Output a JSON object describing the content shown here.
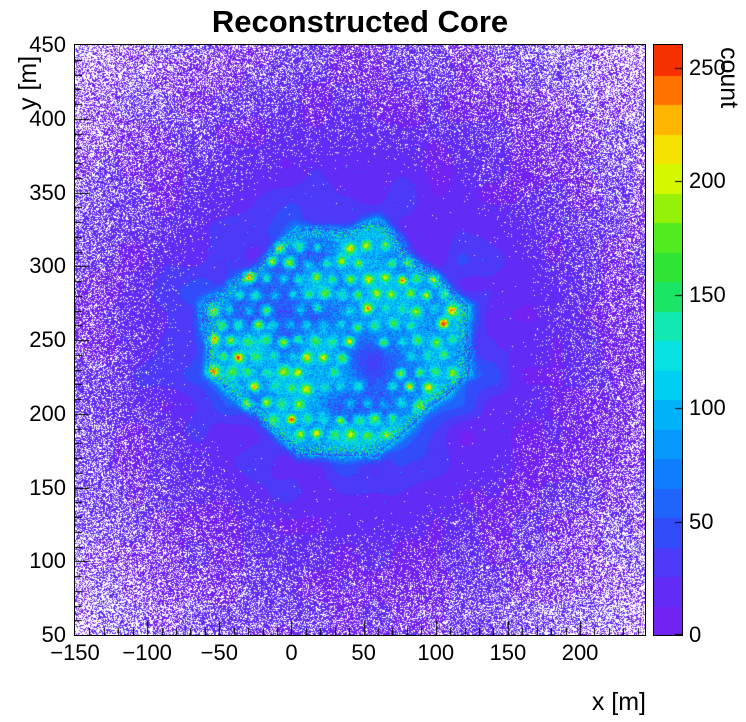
{
  "title": "Reconstructed Core",
  "axes": {
    "x": {
      "label": "x [m]",
      "min": -150,
      "max": 245,
      "major_step": 50,
      "minor_step": 10,
      "tick_values": [
        -150,
        -100,
        -50,
        0,
        50,
        100,
        150,
        200
      ],
      "tick_labels": [
        "−150",
        "−100",
        "−50",
        "0",
        "50",
        "100",
        "150",
        "200"
      ]
    },
    "y": {
      "label": "y [m]",
      "min": 50,
      "max": 450,
      "major_step": 50,
      "minor_step": 10,
      "tick_values": [
        50,
        100,
        150,
        200,
        250,
        300,
        350,
        400,
        450
      ],
      "tick_labels": [
        "50",
        "100",
        "150",
        "200",
        "250",
        "300",
        "350",
        "400",
        "450"
      ]
    },
    "z": {
      "label": "count",
      "min": 0,
      "max": 260,
      "tick_values": [
        0,
        50,
        100,
        150,
        200,
        250
      ],
      "tick_labels": [
        "0",
        "50",
        "100",
        "150",
        "200",
        "250"
      ]
    }
  },
  "chart_data": {
    "type": "heatmap",
    "title": "Reconstructed Core",
    "xlabel": "x [m]",
    "ylabel": "y [m]",
    "zlabel": "count",
    "x_range": [
      -150,
      245
    ],
    "y_range": [
      50,
      450
    ],
    "z_range": [
      0,
      260
    ],
    "grid": false,
    "palette": {
      "name": "root-rainbow",
      "levels": 20,
      "zero_color": "#ffffff",
      "stops": [
        [
          0.0,
          "#7a1df2"
        ],
        [
          0.1,
          "#5a2ff7"
        ],
        [
          0.19,
          "#2a52fa"
        ],
        [
          0.29,
          "#0c86fc"
        ],
        [
          0.37,
          "#00b0fa"
        ],
        [
          0.44,
          "#00d8f0"
        ],
        [
          0.5,
          "#0ce8d8"
        ],
        [
          0.56,
          "#17e87c"
        ],
        [
          0.6,
          "#1ee13c"
        ],
        [
          0.68,
          "#55ec1e"
        ],
        [
          0.74,
          "#aaf300"
        ],
        [
          0.79,
          "#e8f800"
        ],
        [
          0.85,
          "#ffd300"
        ],
        [
          0.9,
          "#ff9800"
        ],
        [
          0.95,
          "#ff4d00"
        ],
        [
          1.0,
          "#ee1300"
        ]
      ]
    },
    "distribution": {
      "seed": 20240613,
      "background_count": 12,
      "array_region": {
        "shape": "octagon",
        "center": [
          32,
          250
        ],
        "half_width_m": 92,
        "half_height_m": 78,
        "plateau_count": 85,
        "rim_count": 140,
        "rim_width": 0.06
      },
      "halo": {
        "amplitude": 40,
        "decay_m": 28
      },
      "central_hole": {
        "center": [
          55,
          236
        ],
        "radius_m": 13,
        "suppression": 0.55
      },
      "detector_grid": {
        "x_min": -54,
        "x_max": 116,
        "y_min": 186,
        "y_max": 316,
        "spacing_m": 11.8,
        "row_step_m": 10.6,
        "dot_sigma_m": 2.3,
        "missing_fraction": 0.12,
        "dot_peak_counts": {
          "common": [
            110,
            145
          ],
          "bright": [
            150,
            195
          ],
          "hot": [
            195,
            255
          ]
        }
      },
      "zero_speckle": {
        "inner_fraction": 0.005,
        "edge_onset": 0.6,
        "edge_slope": 0.8
      },
      "bright_speckle_fraction": 0.0025
    }
  }
}
